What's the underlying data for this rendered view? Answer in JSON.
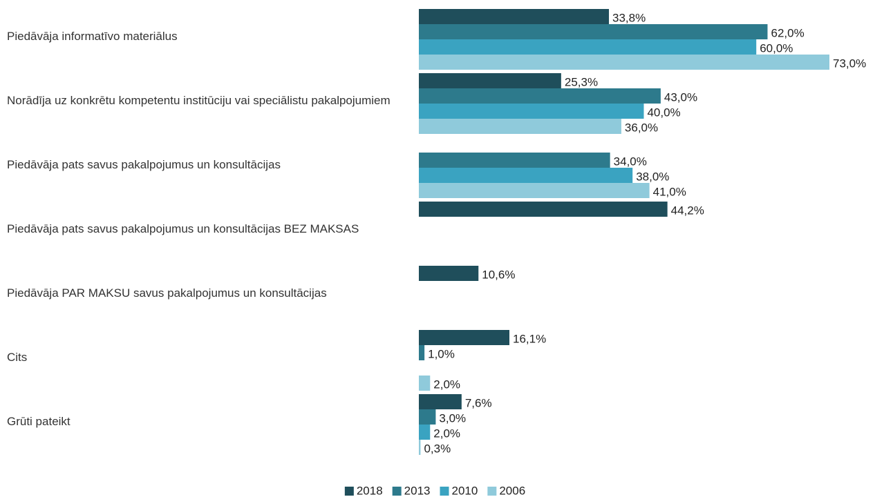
{
  "chart_data": {
    "type": "bar",
    "orientation": "horizontal",
    "categories": [
      "Piedāvāja informatīvo materiālus",
      "Norādīja uz konkrētu kompetentu institūciju vai speciālistu pakalpojumiem",
      "Piedāvāja pats savus pakalpojumus un konsultācijas",
      "Piedāvāja pats savus pakalpojumus un konsultācijas BEZ MAKSAS",
      "Piedāvāja PAR MAKSU savus pakalpojumus un konsultācijas",
      "Cits",
      "Grūti pateikt"
    ],
    "series": [
      {
        "name": "2018",
        "color": "#1f4e5b",
        "values": [
          33.8,
          25.3,
          null,
          44.2,
          10.6,
          16.1,
          7.6
        ],
        "value_labels": [
          "33,8%",
          "25,3%",
          null,
          "44,2%",
          "10,6%",
          "16,1%",
          "7,6%"
        ]
      },
      {
        "name": "2013",
        "color": "#2d7a8c",
        "values": [
          62.0,
          43.0,
          34.0,
          null,
          null,
          1.0,
          3.0
        ],
        "value_labels": [
          "62,0%",
          "43,0%",
          "34,0%",
          null,
          null,
          "1,0%",
          "3,0%"
        ]
      },
      {
        "name": "2010",
        "color": "#3aa3c1",
        "values": [
          60.0,
          40.0,
          38.0,
          null,
          null,
          null,
          2.0
        ],
        "value_labels": [
          "60,0%",
          "40,0%",
          "38,0%",
          null,
          null,
          null,
          "2,0%"
        ]
      },
      {
        "name": "2006",
        "color": "#8fcadb",
        "values": [
          73.0,
          36.0,
          41.0,
          null,
          null,
          2.0,
          0.3
        ],
        "value_labels": [
          "73,0%",
          "36,0%",
          "41,0%",
          null,
          null,
          "2,0%",
          "0,3%"
        ]
      }
    ],
    "legend": "bottom"
  }
}
